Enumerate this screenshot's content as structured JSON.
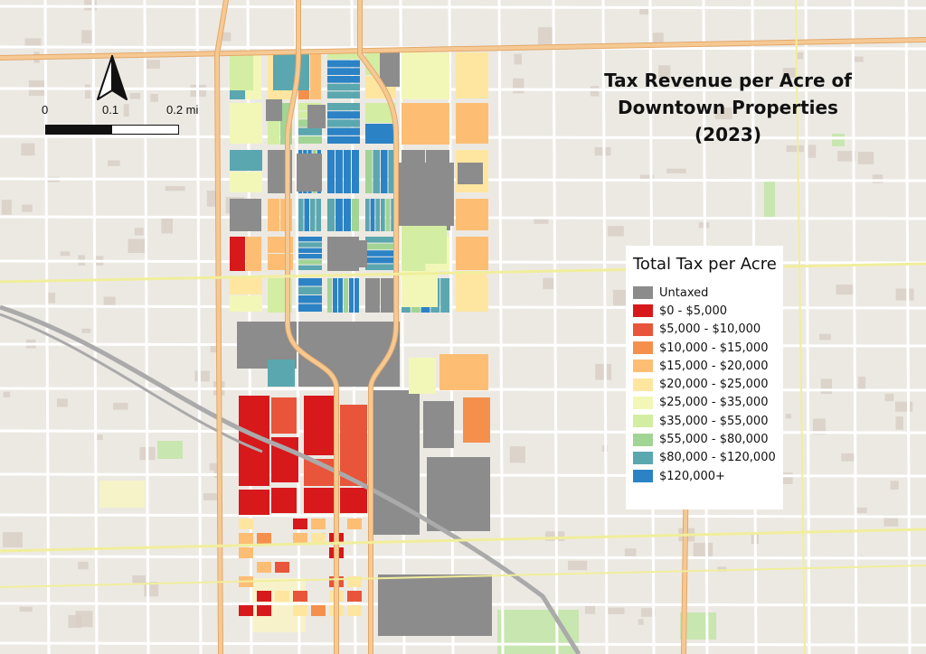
{
  "map": {
    "title": "Tax Revenue per Acre of Downtown Properties (2023)",
    "title_lines": [
      "Tax Revenue per Acre of",
      "Downtown Properties",
      "(2023)"
    ],
    "colors": {
      "background": "#ece9e3",
      "block": "#e0d9d0",
      "building": "#d9cfc7",
      "street": "#ffffff",
      "arterial": "#f6c993",
      "arterial_edge": "#e3a86a",
      "highway": "#f1ee9c",
      "railway": "#aaaaaa",
      "park": "#c8e6b0"
    }
  },
  "north_arrow": {
    "icon": "north-arrow-icon"
  },
  "scale_bar": {
    "labels": [
      "0",
      "0.1",
      "0.2 mi"
    ]
  },
  "legend": {
    "title": "Total Tax per Acre",
    "items": [
      {
        "label": "Untaxed",
        "color": "#8c8c8c"
      },
      {
        "label": "$0 - $5,000",
        "color": "#d7191c"
      },
      {
        "label": "$5,000 - $10,000",
        "color": "#e8553a"
      },
      {
        "label": "$10,000 - $15,000",
        "color": "#f4904c"
      },
      {
        "label": "$15,000 - $20,000",
        "color": "#fdbe74"
      },
      {
        "label": "$20,000 - $25,000",
        "color": "#fee6a0"
      },
      {
        "label": "$25,000 - $35,000",
        "color": "#f2f7b8"
      },
      {
        "label": "$35,000 - $55,000",
        "color": "#d3eda2"
      },
      {
        "label": "$55,000 - $80,000",
        "color": "#a2d495"
      },
      {
        "label": "$80,000 - $120,000",
        "color": "#5aa7b0"
      },
      {
        "label": "$120,000+",
        "color": "#2b83c6"
      }
    ]
  }
}
